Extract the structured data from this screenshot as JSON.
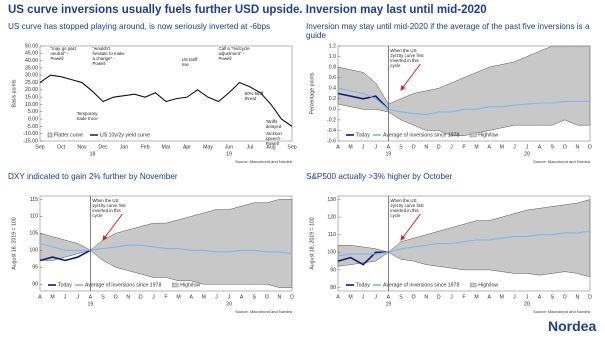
{
  "title": "US curve inversions usually fuels further USD upside. Inversion may last until mid-2020",
  "footer": {
    "logo": "Nordea"
  },
  "chart_data": [
    {
      "type": "line",
      "title": "US curve has stopped playing around, is now seriously inverted at -6bps",
      "y_label": "Basis points",
      "source": "Source: Macrobond and Nordea",
      "categories": [
        "Sep",
        null,
        "Oct",
        null,
        "Nov",
        null,
        "Dec",
        null,
        "Jan",
        null,
        "Feb",
        null,
        "Mar",
        null,
        "Apr",
        null,
        "May",
        null,
        "Jun",
        null,
        "Jul",
        null,
        "Aug",
        null,
        "Sep"
      ],
      "years": [
        "18",
        "19"
      ],
      "ylim": [
        -15,
        50
      ],
      "yticks": [
        {
          "value": 50,
          "label": "50.00"
        },
        {
          "value": 45,
          "label": "45.00"
        },
        {
          "value": 40,
          "label": "40.00"
        },
        {
          "value": 35,
          "label": "35.00"
        },
        {
          "value": 30,
          "label": "30.00"
        },
        {
          "value": 25,
          "label": "25.00"
        },
        {
          "value": 20,
          "label": "20.00"
        },
        {
          "value": 15,
          "label": "15.00"
        },
        {
          "value": 10,
          "label": "10.00"
        },
        {
          "value": 5,
          "label": "5.00"
        },
        {
          "value": 0,
          "label": "0.00"
        },
        {
          "value": -5,
          "label": "-5.00"
        },
        {
          "value": -10,
          "label": "-10.00"
        },
        {
          "value": -15,
          "label": "-15.00"
        }
      ],
      "shaded_label": "Flatter curve",
      "annotations": [
        "\"may go past neutral\" - Powell",
        "\"wouldn't hesitate to make a change\" - Powell",
        "US tariff rise",
        "Call a \"midcycle adjustment\" - Powell",
        "Temporary trade truce",
        "50% tariff threat",
        "Tariffs delayed",
        "Jackson speech - Powell"
      ],
      "series": [
        {
          "name": "US 10y/2y yield curve",
          "color": "#111111",
          "values": [
            25,
            30,
            29,
            27,
            25,
            19,
            12,
            15,
            16,
            17,
            15,
            18,
            12,
            14,
            15,
            20,
            15,
            12,
            18,
            25,
            22,
            18,
            10,
            0,
            -5
          ]
        }
      ]
    },
    {
      "type": "line",
      "title": "Inversion may stay until mid-2020 if the average of the past five inversions is a guide",
      "y_label": "Percentage points",
      "source": "Source: Macrobond and Nordea",
      "annotation": "When the US 2y/10y curve first inverted in this cycle",
      "categories": [
        "A",
        "M",
        "J",
        "J",
        "A",
        "S",
        "O",
        "N",
        "D",
        "J",
        "F",
        "M",
        "A",
        "M",
        "J",
        "J",
        "A",
        "S",
        "O",
        "N",
        "D"
      ],
      "years": [
        "19",
        "20"
      ],
      "ylim": [
        -0.6,
        1.2
      ],
      "yticks": [
        {
          "value": 1.2,
          "label": "1.2"
        },
        {
          "value": 1.0,
          "label": "1.0"
        },
        {
          "value": 0.8,
          "label": "0.8"
        },
        {
          "value": 0.6,
          "label": "0.6"
        },
        {
          "value": 0.4,
          "label": "0.4"
        },
        {
          "value": 0.2,
          "label": "0.2"
        },
        {
          "value": 0,
          "label": "0.0"
        },
        {
          "value": -0.2,
          "label": "-0.2"
        },
        {
          "value": -0.4,
          "label": "-0.4"
        },
        {
          "value": -0.6,
          "label": "-0.6"
        }
      ],
      "series": [
        {
          "name": "Today",
          "color": "#0b1f7a",
          "values": [
            0.3,
            0.25,
            0.2,
            0.25,
            0.0,
            null,
            null,
            null,
            null,
            null,
            null,
            null,
            null,
            null,
            null,
            null,
            null,
            null,
            null,
            null,
            null
          ]
        },
        {
          "name": "Average of inversions since 1978",
          "color": "#7fb8ef",
          "values": [
            0.4,
            0.35,
            0.3,
            0.2,
            0.0,
            -0.05,
            -0.08,
            -0.1,
            -0.05,
            -0.05,
            0.0,
            0.0,
            0.05,
            0.05,
            0.08,
            0.1,
            0.12,
            0.12,
            0.15,
            0.15,
            0.15
          ]
        }
      ],
      "band": {
        "name": "High/low",
        "color": "#c8c8c8",
        "high": [
          0.8,
          0.75,
          0.7,
          0.5,
          0.1,
          0.2,
          0.3,
          0.35,
          0.4,
          0.5,
          0.6,
          0.7,
          0.8,
          0.85,
          0.9,
          1.0,
          1.1,
          1.2,
          1.2,
          1.2,
          1.2
        ],
        "low": [
          0.1,
          0.05,
          0.0,
          0.0,
          -0.05,
          -0.2,
          -0.3,
          -0.4,
          -0.4,
          -0.5,
          -0.5,
          -0.45,
          -0.4,
          -0.35,
          -0.3,
          -0.3,
          -0.3,
          -0.3,
          -0.2,
          -0.3,
          -0.3
        ]
      }
    },
    {
      "type": "line",
      "title": "DXY indicated to gain 2% further by November",
      "y_label": "August 18, 2019 = 100",
      "source": "Source: Macrobond and Nordea",
      "annotation": "When the US 2y/10y curve first inverted in this cycle",
      "categories": [
        "A",
        "M",
        "J",
        "J",
        "A",
        "S",
        "O",
        "N",
        "D",
        "J",
        "F",
        "M",
        "A",
        "M",
        "J",
        "J",
        "A",
        "S",
        "O",
        "N",
        "D"
      ],
      "years": [
        "19",
        "20"
      ],
      "ylim": [
        88,
        116
      ],
      "yticks": [
        90,
        95,
        100,
        105,
        110,
        115
      ],
      "series": [
        {
          "name": "Today",
          "color": "#0b1f7a",
          "values": [
            97,
            98,
            97,
            98,
            100,
            null,
            null,
            null,
            null,
            null,
            null,
            null,
            null,
            null,
            null,
            null,
            null,
            null,
            null,
            null,
            null
          ]
        },
        {
          "name": "Average of inversions since 1978",
          "color": "#7fb8ef",
          "values": [
            102,
            101,
            100,
            100,
            100,
            100.5,
            101,
            101.5,
            101.5,
            101,
            100.5,
            100.5,
            100,
            100,
            99.5,
            99.5,
            100,
            100,
            99.5,
            99.5,
            99
          ]
        }
      ],
      "band": {
        "name": "High/low",
        "color": "#c8c8c8",
        "high": [
          105,
          104,
          103,
          102,
          100,
          103,
          105,
          106,
          107,
          108,
          108,
          109,
          110,
          111,
          112,
          112,
          113,
          114,
          114,
          115,
          115
        ],
        "low": [
          97,
          97,
          98,
          99,
          100,
          97,
          95,
          94,
          93,
          92,
          92,
          91,
          91,
          90,
          90,
          90,
          90,
          90,
          90,
          89,
          89
        ]
      }
    },
    {
      "type": "line",
      "title": "S&P500 actually >3% higher by October",
      "y_label": "August 18, 2019 = 100",
      "source": "Source: Macrobond and Nordea",
      "annotation": "When the US 2y/10y curve first inverted in this cycle",
      "categories": [
        "A",
        "M",
        "J",
        "J",
        "A",
        "S",
        "O",
        "N",
        "D",
        "J",
        "F",
        "M",
        "A",
        "M",
        "J",
        "J",
        "A",
        "S",
        "O",
        "N",
        "D"
      ],
      "years": [
        "19",
        "20"
      ],
      "ylim": [
        78,
        132
      ],
      "yticks": [
        80,
        90,
        100,
        110,
        120,
        130
      ],
      "series": [
        {
          "name": "Today",
          "color": "#0b1f7a",
          "values": [
            95,
            97,
            93,
            100,
            100,
            null,
            null,
            null,
            null,
            null,
            null,
            null,
            null,
            null,
            null,
            null,
            null,
            null,
            null,
            null,
            null
          ]
        },
        {
          "name": "Average of inversions since 1978",
          "color": "#7fb8ef",
          "values": [
            98,
            99,
            99,
            99,
            100,
            102,
            103,
            104,
            105,
            105,
            106,
            107,
            107,
            108,
            109,
            109,
            110,
            110,
            111,
            111,
            112
          ]
        }
      ],
      "band": {
        "name": "High/low",
        "color": "#c8c8c8",
        "high": [
          104,
          104,
          103,
          102,
          100,
          106,
          108,
          110,
          112,
          114,
          116,
          118,
          118,
          120,
          122,
          124,
          125,
          126,
          127,
          128,
          130
        ],
        "low": [
          92,
          93,
          94,
          95,
          100,
          96,
          95,
          93,
          92,
          91,
          90,
          90,
          90,
          89,
          88,
          88,
          87,
          88,
          89,
          88,
          86
        ]
      }
    }
  ]
}
